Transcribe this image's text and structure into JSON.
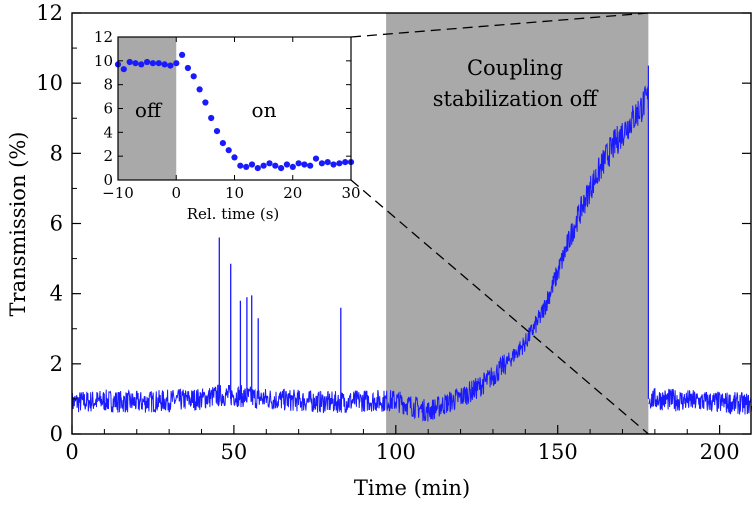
{
  "chart_data": [
    {
      "type": "line",
      "xlabel": "Time (min)",
      "ylabel": "Transmission (%)",
      "xlim": [
        0,
        210
      ],
      "ylim": [
        0,
        12
      ],
      "xticks": [
        "0",
        "50",
        "100",
        "150",
        "200"
      ],
      "yticks": [
        "0",
        "2",
        "4",
        "6",
        "8",
        "10",
        "12"
      ],
      "grid": false,
      "shaded_region": {
        "x": [
          97,
          178
        ],
        "label_lines": [
          "Coupling",
          "stabilization off"
        ]
      },
      "series": [
        {
          "color": "#1a1aff",
          "x": [
            0,
            10,
            20,
            30,
            40,
            45,
            50,
            55,
            60,
            70,
            80,
            90,
            97,
            100,
            105,
            110,
            115,
            120,
            125,
            130,
            135,
            140,
            145,
            150,
            155,
            160,
            165,
            170,
            175,
            178,
            180,
            190,
            200,
            210
          ],
          "y": [
            0.9,
            0.95,
            0.9,
            0.95,
            1.0,
            1.1,
            1.1,
            1.05,
            1.0,
            0.95,
            0.9,
            0.95,
            0.95,
            0.95,
            0.8,
            0.65,
            0.85,
            1.05,
            1.3,
            1.65,
            2.1,
            2.6,
            3.4,
            4.6,
            5.9,
            7.0,
            7.9,
            8.6,
            9.2,
            9.6,
            1.0,
            0.95,
            0.9,
            0.85
          ],
          "spikes": [
            {
              "x": 45.5,
              "y": 5.6
            },
            {
              "x": 49,
              "y": 4.85
            },
            {
              "x": 52,
              "y": 3.8
            },
            {
              "x": 54,
              "y": 3.9
            },
            {
              "x": 55.5,
              "y": 3.95
            },
            {
              "x": 57.5,
              "y": 3.3
            },
            {
              "x": 83,
              "y": 3.6
            }
          ]
        }
      ]
    },
    {
      "type": "scatter",
      "xlabel": "Rel. time (s)",
      "ylabel": "",
      "xlim": [
        -10,
        30
      ],
      "ylim": [
        0,
        12
      ],
      "xticks": [
        "−10",
        "0",
        "10",
        "20",
        "30"
      ],
      "yticks": [
        "0",
        "2",
        "4",
        "6",
        "8",
        "10",
        "12"
      ],
      "grid": false,
      "regions": [
        {
          "label": "off",
          "x": [
            -10,
            0
          ]
        },
        {
          "label": "on",
          "x": [
            0,
            30
          ]
        }
      ],
      "series": [
        {
          "color": "#1a1aff",
          "x": [
            -10,
            -9,
            -8,
            -7,
            -6,
            -5,
            -4,
            -3,
            -2,
            -1,
            0,
            1,
            2,
            3,
            4,
            5,
            6,
            7,
            8,
            9,
            10,
            11,
            12,
            13,
            14,
            15,
            16,
            17,
            18,
            19,
            20,
            21,
            22,
            23,
            24,
            25,
            26,
            27,
            28,
            29,
            30
          ],
          "y": [
            9.7,
            9.3,
            9.9,
            9.8,
            9.7,
            9.9,
            9.8,
            9.8,
            9.7,
            9.6,
            9.8,
            10.5,
            9.4,
            8.7,
            7.6,
            6.5,
            5.2,
            4.1,
            3.1,
            2.5,
            1.9,
            1.2,
            1.1,
            1.3,
            1.0,
            1.2,
            1.4,
            1.2,
            1.0,
            1.3,
            1.1,
            1.4,
            1.3,
            1.2,
            1.8,
            1.4,
            1.5,
            1.3,
            1.4,
            1.5,
            1.5
          ]
        }
      ]
    }
  ]
}
